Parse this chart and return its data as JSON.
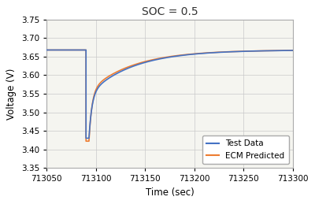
{
  "title": "SOC = 0.5",
  "xlabel": "Time (sec)",
  "ylabel": "Voltage (V)",
  "xlim": [
    713050,
    713300
  ],
  "ylim": [
    3.35,
    3.75
  ],
  "xticks": [
    713050,
    713100,
    713150,
    713200,
    713250,
    713300
  ],
  "yticks": [
    3.35,
    3.4,
    3.45,
    3.5,
    3.55,
    3.6,
    3.65,
    3.7,
    3.75
  ],
  "test_color": "#4472c4",
  "ecm_color": "#ed7d31",
  "legend_labels": [
    "Test Data",
    "ECM Predicted"
  ],
  "t_start": 713050,
  "t_step": 713090,
  "t_recover_start": 713093,
  "t_end": 713300,
  "v_steady": 3.668,
  "v_min_ecm": 3.422,
  "v_min_test": 3.43,
  "tau_fast": 3.0,
  "tau_slow": 45.0,
  "background_color": "#ffffff",
  "plot_bg_color": "#f5f5f0",
  "grid_color": "#c8c8c8"
}
